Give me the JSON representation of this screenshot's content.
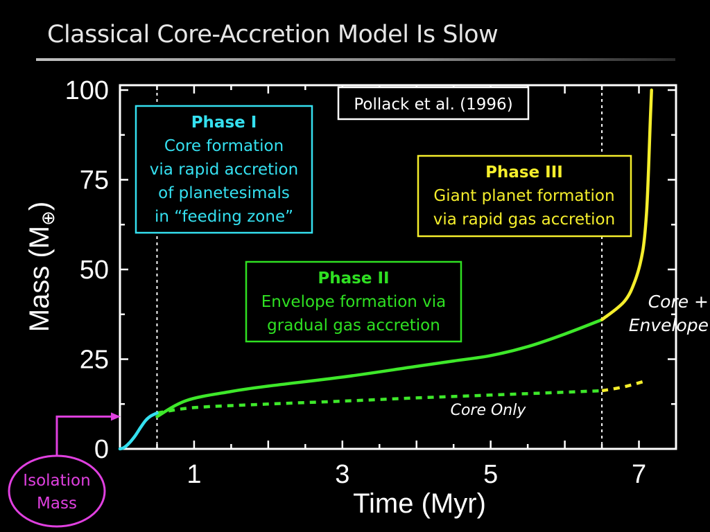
{
  "slide": {
    "title": "Classical Core-Accretion Model Is Slow"
  },
  "chart_data": {
    "type": "line",
    "title": "",
    "xlabel": "Time  (Myr)",
    "ylabel_prefix": "Mass  (M",
    "ylabel_symbol": "⊕",
    "ylabel_suffix": ")",
    "xlim": [
      0,
      7.5
    ],
    "ylim": [
      0,
      100
    ],
    "x_ticks": [
      1,
      3,
      5,
      7
    ],
    "y_ticks": [
      0,
      25,
      50,
      75,
      100
    ],
    "citation": "Pollack et al. (1996)",
    "phase_boundaries": [
      0.5,
      6.5
    ],
    "series": [
      {
        "name": "Core + Envelope",
        "label_lines": [
          "Core +",
          "Envelope"
        ],
        "color": "#3ee82a",
        "style": "solid",
        "points": [
          [
            0.5,
            9
          ],
          [
            0.9,
            13.5
          ],
          [
            1.5,
            16
          ],
          [
            2,
            17.5
          ],
          [
            3,
            20
          ],
          [
            4,
            23
          ],
          [
            4.5,
            24.5
          ],
          [
            5,
            26
          ],
          [
            5.5,
            28.5
          ],
          [
            6,
            32
          ],
          [
            6.5,
            36
          ]
        ]
      },
      {
        "name": "Core Only",
        "label_lines": [
          "Core Only"
        ],
        "color": "#3ee82a",
        "style": "dashed",
        "points": [
          [
            0.5,
            10
          ],
          [
            1,
            11.5
          ],
          [
            2,
            12.5
          ],
          [
            3,
            13.3
          ],
          [
            4,
            14.2
          ],
          [
            5,
            15
          ],
          [
            6,
            15.8
          ],
          [
            6.5,
            16.2
          ]
        ]
      },
      {
        "name": "Phase I",
        "color": "#35e0f0",
        "style": "solid",
        "points": [
          [
            0,
            0
          ],
          [
            0.05,
            0.3
          ],
          [
            0.12,
            1.5
          ],
          [
            0.2,
            3.5
          ],
          [
            0.28,
            6
          ],
          [
            0.35,
            8
          ],
          [
            0.42,
            9.2
          ],
          [
            0.5,
            10
          ]
        ]
      },
      {
        "name": "Phase III (Core + Envelope)",
        "color": "#f5ee2c",
        "style": "solid",
        "points": [
          [
            6.5,
            36
          ],
          [
            6.8,
            41
          ],
          [
            6.95,
            47
          ],
          [
            7.05,
            55
          ],
          [
            7.1,
            65
          ],
          [
            7.13,
            78
          ],
          [
            7.15,
            90
          ],
          [
            7.17,
            100
          ]
        ]
      },
      {
        "name": "Phase III (Core Only)",
        "color": "#f5ee2c",
        "style": "dashed",
        "points": [
          [
            6.5,
            16.2
          ],
          [
            6.8,
            17.3
          ],
          [
            7.1,
            19
          ]
        ]
      }
    ],
    "annotations": [
      {
        "id": "phase-1",
        "heading": "Phase I",
        "lines": [
          "Core formation",
          "via rapid accretion",
          "of planetesimals",
          "in “feeding zone”"
        ],
        "color": "#35e0f0"
      },
      {
        "id": "phase-2",
        "heading": "Phase II",
        "lines": [
          "Envelope formation via",
          "gradual gas accretion"
        ],
        "color": "#2fe022"
      },
      {
        "id": "phase-3",
        "heading": "Phase III",
        "lines": [
          "Giant planet formation",
          "via rapid gas accretion"
        ],
        "color": "#f5ee2c"
      }
    ],
    "callout": {
      "lines": [
        "Isolation",
        "Mass"
      ],
      "color": "#e040e0",
      "points_to_y": 9
    }
  }
}
